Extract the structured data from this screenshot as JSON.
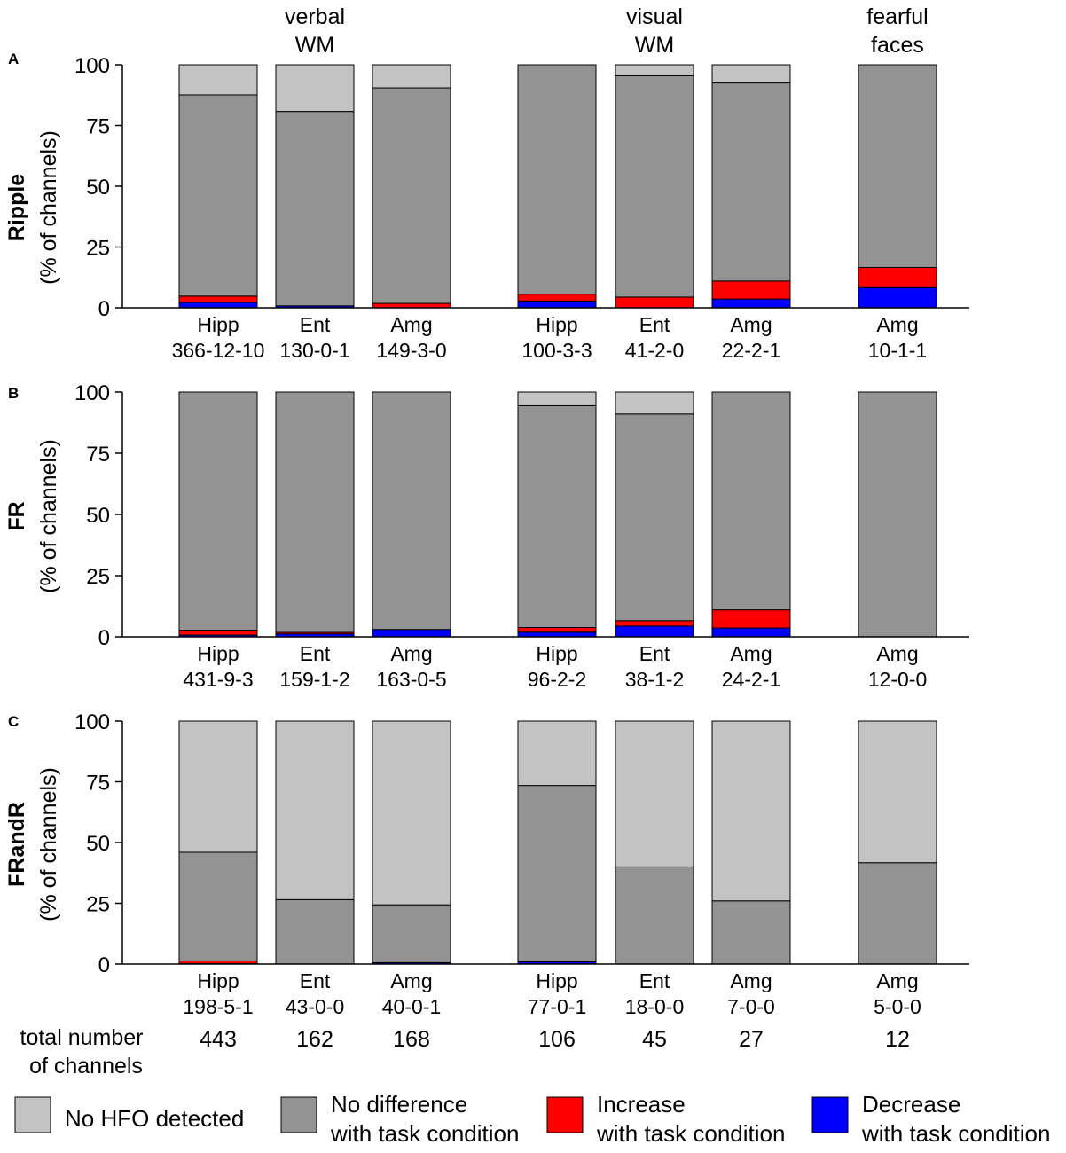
{
  "colors": {
    "no_hfo": "#c3c3c3",
    "no_difference": "#939393",
    "increase": "#ff0000",
    "decrease": "#0000ff",
    "axis": "#000000"
  },
  "group_labels": [
    {
      "line1": "verbal",
      "line2": "WM"
    },
    {
      "line1": "visual",
      "line2": "WM"
    },
    {
      "line1": "fearful",
      "line2": "faces"
    }
  ],
  "yticks": [
    "100",
    "75",
    "50",
    "25",
    "0"
  ],
  "total": {
    "line1": "total number",
    "line2": "of channels",
    "values": [
      "443",
      "162",
      "168",
      "106",
      "45",
      "27",
      "12"
    ]
  },
  "legend": [
    {
      "key": "no_hfo",
      "line1": "No HFO detected",
      "line2": ""
    },
    {
      "key": "no_difference",
      "line1": "No difference",
      "line2": "with task condition"
    },
    {
      "key": "increase",
      "line1": "Increase",
      "line2": "with task condition"
    },
    {
      "key": "decrease",
      "line1": "Decrease",
      "line2": "with task condition"
    }
  ],
  "chart_data": [
    {
      "type": "bar",
      "stacked": true,
      "panel": "A",
      "ylabel": "Ripple",
      "ylabel2": "(% of channels)",
      "ylim": [
        0,
        100
      ],
      "categories": [
        "Hipp",
        "Ent",
        "Amg",
        "Hipp",
        "Ent",
        "Amg",
        "Amg"
      ],
      "counts": [
        "366-12-10",
        "130-0-1",
        "149-3-0",
        "100-3-3",
        "41-2-0",
        "22-2-1",
        "10-1-1"
      ],
      "series": [
        {
          "name": "Decrease with task condition",
          "key": "decrease",
          "values": [
            2.2,
            0.8,
            0,
            2.8,
            0,
            3.6,
            8.3
          ]
        },
        {
          "name": "Increase with task condition",
          "key": "increase",
          "values": [
            2.6,
            0,
            1.8,
            2.8,
            4.4,
            7.4,
            8.3
          ]
        },
        {
          "name": "No difference with task condition",
          "key": "no_difference",
          "values": [
            82.8,
            80.0,
            88.7,
            94.4,
            91.1,
            81.5,
            83.4
          ]
        },
        {
          "name": "No HFO detected",
          "key": "no_hfo",
          "values": [
            12.4,
            19.2,
            9.5,
            0,
            4.5,
            7.5,
            0
          ]
        }
      ]
    },
    {
      "type": "bar",
      "stacked": true,
      "panel": "B",
      "ylabel": "FR",
      "ylabel2": "(% of channels)",
      "ylim": [
        0,
        100
      ],
      "categories": [
        "Hipp",
        "Ent",
        "Amg",
        "Hipp",
        "Ent",
        "Amg",
        "Amg"
      ],
      "counts": [
        "431-9-3",
        "159-1-2",
        "163-0-5",
        "96-2-2",
        "38-1-2",
        "24-2-1",
        "12-0-0"
      ],
      "series": [
        {
          "name": "Decrease with task condition",
          "key": "decrease",
          "values": [
            0.7,
            1.2,
            3.0,
            1.9,
            4.4,
            3.6,
            0
          ]
        },
        {
          "name": "Increase with task condition",
          "key": "increase",
          "values": [
            2.0,
            0.6,
            0,
            1.9,
            2.2,
            7.4,
            0
          ]
        },
        {
          "name": "No difference with task condition",
          "key": "no_difference",
          "values": [
            97.3,
            98.2,
            97.0,
            90.6,
            84.4,
            89.0,
            100
          ]
        },
        {
          "name": "No HFO detected",
          "key": "no_hfo",
          "values": [
            0,
            0,
            0,
            5.6,
            9.0,
            0,
            0
          ]
        }
      ]
    },
    {
      "type": "bar",
      "stacked": true,
      "panel": "C",
      "ylabel": "FRandR",
      "ylabel2": "(% of channels)",
      "ylim": [
        0,
        100
      ],
      "categories": [
        "Hipp",
        "Ent",
        "Amg",
        "Hipp",
        "Ent",
        "Amg",
        "Amg"
      ],
      "counts": [
        "198-5-1",
        "43-0-0",
        "40-0-1",
        "77-0-1",
        "18-0-0",
        "7-0-0",
        "5-0-0"
      ],
      "series": [
        {
          "name": "Decrease with task condition",
          "key": "decrease",
          "values": [
            0.2,
            0,
            0.6,
            0.9,
            0,
            0,
            0
          ]
        },
        {
          "name": "Increase with task condition",
          "key": "increase",
          "values": [
            1.1,
            0,
            0,
            0,
            0,
            0,
            0
          ]
        },
        {
          "name": "No difference with task condition",
          "key": "no_difference",
          "values": [
            44.7,
            26.5,
            23.8,
            72.6,
            40.0,
            26.0,
            41.7
          ]
        },
        {
          "name": "No HFO detected",
          "key": "no_hfo",
          "values": [
            54.0,
            73.5,
            75.6,
            26.5,
            60.0,
            74.0,
            58.3
          ]
        }
      ]
    }
  ]
}
